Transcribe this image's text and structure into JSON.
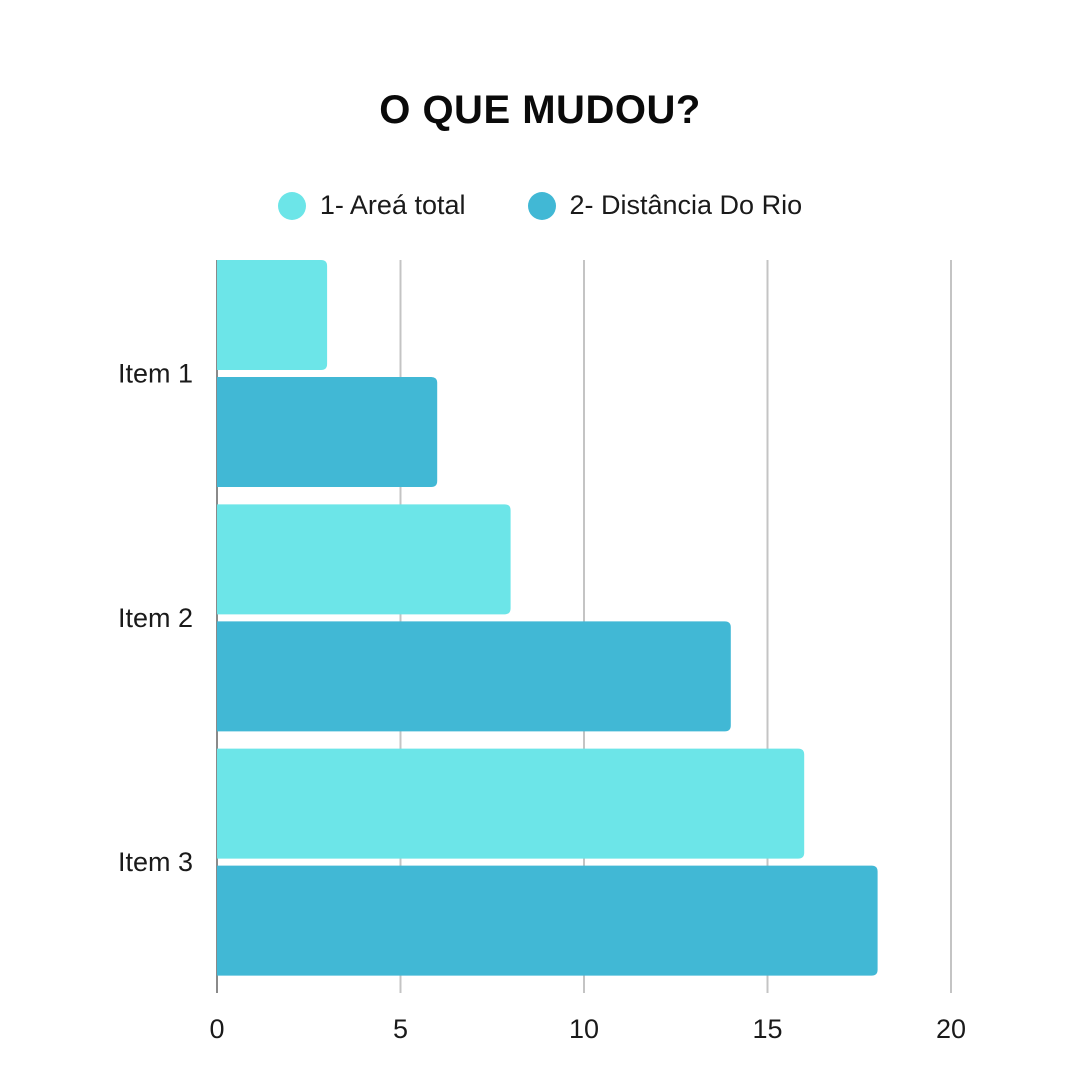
{
  "chart_data": {
    "type": "bar",
    "orientation": "horizontal",
    "title": "O QUE MUDOU?",
    "categories": [
      "Item 1",
      "Item 2",
      "Item 3"
    ],
    "series": [
      {
        "name": "1- Areá total",
        "values": [
          3,
          8,
          16
        ],
        "color": "#6ce5e8"
      },
      {
        "name": "2- Distância Do Rio",
        "values": [
          6,
          14,
          18
        ],
        "color": "#41b8d5"
      }
    ],
    "xlim": [
      0,
      20
    ],
    "xticks": [
      0,
      5,
      10,
      15,
      20
    ],
    "xtick_labels": [
      "0",
      "5",
      "10",
      "15",
      "20"
    ],
    "grid": true,
    "legend_position": "top-center",
    "grid_color": "#c4c4c4"
  }
}
